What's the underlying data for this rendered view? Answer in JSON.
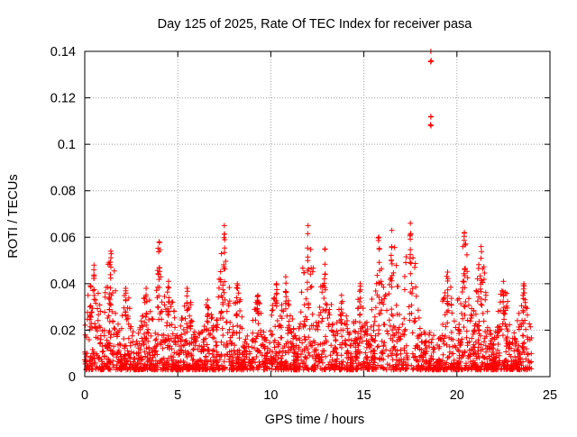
{
  "chart_data": {
    "type": "scatter",
    "title": "Day 125 of 2025, Rate Of TEC Index for receiver pasa",
    "xlabel": "GPS time / hours",
    "ylabel": "ROTI / TECUs",
    "xlim": [
      0,
      25
    ],
    "ylim": [
      0,
      0.14
    ],
    "x_ticks": [
      0,
      5,
      10,
      15,
      20,
      25
    ],
    "y_ticks": [
      0,
      0.02,
      0.04,
      0.06,
      0.08,
      0.1,
      0.12,
      0.14
    ],
    "grid": true,
    "legend": "none",
    "marker": "plus",
    "color": "#ff0000",
    "series": [
      {
        "values_x_hours_range": [
          0,
          24
        ],
        "baseline_typical": 0.012,
        "spikes": [
          {
            "x": 0.3,
            "y": 0.039
          },
          {
            "x": 0.5,
            "y": 0.048
          },
          {
            "x": 1.4,
            "y": 0.054
          },
          {
            "x": 2.2,
            "y": 0.038
          },
          {
            "x": 3.3,
            "y": 0.038
          },
          {
            "x": 4.0,
            "y": 0.058
          },
          {
            "x": 4.5,
            "y": 0.041
          },
          {
            "x": 5.5,
            "y": 0.038
          },
          {
            "x": 6.6,
            "y": 0.033
          },
          {
            "x": 7.5,
            "y": 0.065
          },
          {
            "x": 8.2,
            "y": 0.04
          },
          {
            "x": 9.3,
            "y": 0.035
          },
          {
            "x": 10.3,
            "y": 0.04
          },
          {
            "x": 10.8,
            "y": 0.043
          },
          {
            "x": 12.0,
            "y": 0.065
          },
          {
            "x": 12.9,
            "y": 0.055
          },
          {
            "x": 13.8,
            "y": 0.035
          },
          {
            "x": 14.8,
            "y": 0.04
          },
          {
            "x": 15.8,
            "y": 0.06
          },
          {
            "x": 16.5,
            "y": 0.063
          },
          {
            "x": 17.5,
            "y": 0.066
          },
          {
            "x": 18.6,
            "y": 0.14
          },
          {
            "x": 18.6,
            "y": 0.112
          },
          {
            "x": 19.5,
            "y": 0.045
          },
          {
            "x": 20.4,
            "y": 0.062
          },
          {
            "x": 21.3,
            "y": 0.056
          },
          {
            "x": 22.5,
            "y": 0.041
          },
          {
            "x": 23.6,
            "y": 0.04
          }
        ]
      }
    ]
  }
}
